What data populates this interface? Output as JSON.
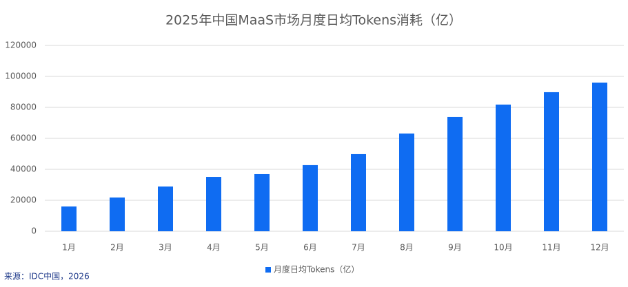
{
  "chart_data": {
    "type": "bar",
    "title": "2025年中国MaaS市场月度日均Tokens消耗（亿）",
    "categories": [
      "1月",
      "2月",
      "3月",
      "4月",
      "5月",
      "6月",
      "7月",
      "8月",
      "9月",
      "10月",
      "11月",
      "12月"
    ],
    "series": [
      {
        "name": "月度日均Tokens（亿）",
        "color": "#0f6cf2",
        "values": [
          16000,
          21800,
          28900,
          35100,
          36900,
          42700,
          49800,
          63100,
          73800,
          81800,
          89800,
          96000
        ]
      }
    ],
    "ylim": [
      0,
      120000
    ],
    "yticks": [
      0,
      20000,
      40000,
      60000,
      80000,
      100000,
      120000
    ],
    "grid": true,
    "legend": "bottom",
    "source": "来源：IDC中国，2026"
  }
}
